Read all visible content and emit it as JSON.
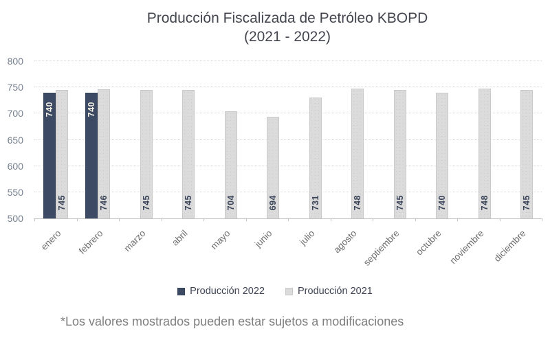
{
  "page": {
    "footnote": "*Los valores mostrados pueden estar sujetos a modificaciones"
  },
  "chart_data": {
    "type": "bar",
    "title": "Producción Fiscalizada de Petróleo KBOPD",
    "subtitle": "(2021 - 2022)",
    "categories": [
      "enero",
      "febrero",
      "marzo",
      "abril",
      "mayo",
      "junio",
      "julio",
      "agosto",
      "septiembre",
      "octubre",
      "noviembre",
      "diciembre"
    ],
    "series": [
      {
        "name": "Producción 2022",
        "color": "#3d4a63",
        "border_color": "#35425c",
        "label_color": "#f2efe3",
        "label_position": "inside-end",
        "values": [
          740,
          740,
          null,
          null,
          null,
          null,
          null,
          null,
          null,
          null,
          null,
          null
        ]
      },
      {
        "name": "Producción 2021",
        "color": "#dbdbdb",
        "border_color": "#c9c9c9",
        "label_color": "#3a4459",
        "label_position": "inside-base",
        "values": [
          745,
          746,
          745,
          745,
          704,
          694,
          731,
          748,
          745,
          740,
          748,
          745
        ]
      }
    ],
    "xlabel": "",
    "ylabel": "",
    "ylim": [
      500,
      800
    ],
    "ytick_step": 50,
    "yticks": [
      500,
      550,
      600,
      650,
      700,
      750,
      800
    ],
    "grid": true,
    "legend_position": "bottom",
    "show_data_labels": true
  },
  "colors": {
    "background": "#ffffff",
    "title_text": "#44464f",
    "y_axis_label": "#76808e",
    "x_axis_label": "#6e6e6e",
    "gridline": "#dcdcdc",
    "axis_line": "#bfbfbf",
    "legend_text": "#3d4152",
    "footnote_text": "#7f7f7f"
  }
}
